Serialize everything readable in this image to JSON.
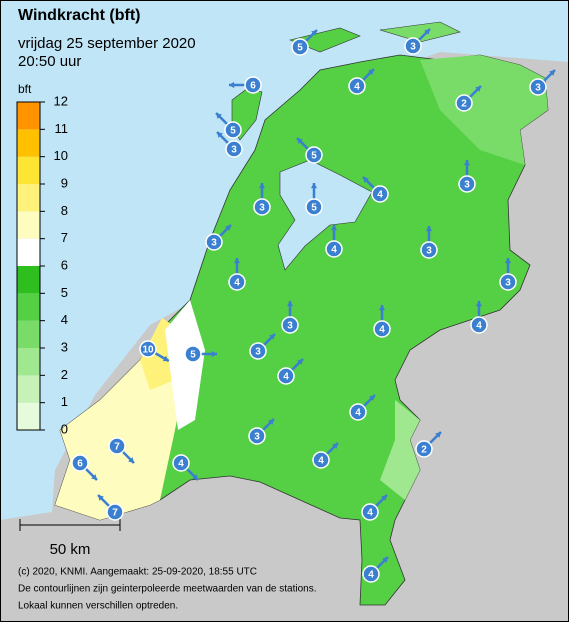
{
  "header": {
    "title": "Windkracht (bft)",
    "date": "vrijdag 25 september 2020",
    "time": "20:50 uur"
  },
  "legend": {
    "unit": "bft",
    "ticks": [
      0,
      1,
      2,
      3,
      4,
      5,
      6,
      7,
      8,
      9,
      10,
      11,
      12
    ],
    "colors": [
      "#e6fadc",
      "#c6f2b8",
      "#9fe890",
      "#7adc68",
      "#55cf44",
      "#2ebf1f",
      "#ffffff",
      "#fffcc0",
      "#fff27a",
      "#ffe533",
      "#ffc000",
      "#ff9400"
    ]
  },
  "scale": "50 km",
  "footer": [
    "(c) 2020, KNMI. Aangemaakt: 25-09-2020, 18:55 UTC",
    "De contourlijnen zijn geinterpoleerde meetwaarden van de stations.",
    "Lokaal kunnen verschillen optreden."
  ],
  "stations": [
    5,
    3,
    3,
    6,
    4,
    2,
    5,
    3,
    5,
    4,
    3,
    3,
    5,
    3,
    4,
    3,
    4,
    3,
    3,
    4,
    4,
    10,
    5,
    3,
    4,
    4,
    3,
    7,
    6,
    2,
    4,
    4,
    7,
    4,
    4
  ]
}
